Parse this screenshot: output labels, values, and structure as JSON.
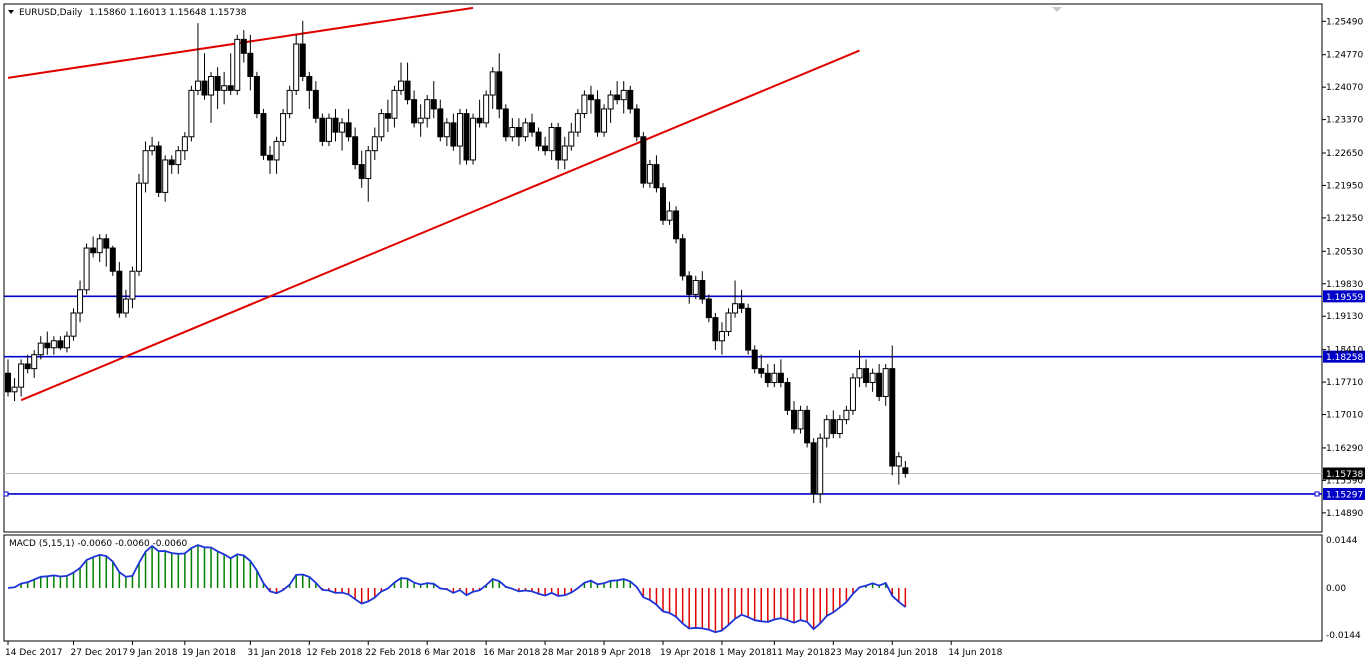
{
  "header": {
    "symbol_label": "EURUSD,Daily",
    "ohlc": "1.15860 1.16013 1.15648 1.15738"
  },
  "macd_label": "MACD (5,15,1) -0.0060 -0.0060 -0.0060",
  "colors": {
    "border": "#000000",
    "bull_fill": "#ffffff",
    "bear_fill": "#000000",
    "trend": "#e00000",
    "hline": "#0000c8",
    "macd_pos": "#008000",
    "macd_neg": "#e00000",
    "signal": "#1c34d8"
  },
  "chart_data": {
    "type": "candlestick",
    "symbol": "EURUSD",
    "timeframe": "Daily",
    "y_ticks": [
      "1.25490",
      "1.24770",
      "1.24070",
      "1.23370",
      "1.22650",
      "1.21950",
      "1.21250",
      "1.20530",
      "1.19830",
      "1.19130",
      "1.18410",
      "1.17710",
      "1.17010",
      "1.16290",
      "1.15590",
      "1.14890"
    ],
    "y_range": [
      1.1452,
      1.2582
    ],
    "x_labels": [
      "14 Dec 2017",
      "27 Dec 2017",
      "9 Jan 2018",
      "19 Jan 2018",
      "31 Jan 2018",
      "12 Feb 2018",
      "22 Feb 2018",
      "6 Mar 2018",
      "16 Mar 2018",
      "28 Mar 2018",
      "9 Apr 2018",
      "19 Apr 2018",
      "1 May 2018",
      "11 May 2018",
      "23 May 2018",
      "4 Jun 2018",
      "14 Jun 2018"
    ],
    "x_label_bars": [
      0,
      10,
      19,
      27,
      37,
      46,
      55,
      64,
      73,
      82,
      91,
      100,
      109,
      117,
      126,
      135,
      144
    ],
    "current_price": "1.15738",
    "horizontal_levels": [
      {
        "label": "1.19559",
        "value": 1.19559
      },
      {
        "label": "1.18258",
        "value": 1.18258
      },
      {
        "label": "1.15297",
        "value": 1.15297
      }
    ],
    "trendlines": [
      {
        "from": {
          "bar": 0,
          "price": 1.2427
        },
        "to": {
          "bar": 71,
          "price": 1.2578
        }
      },
      {
        "from": {
          "bar": 2,
          "price": 1.1732
        },
        "to": {
          "bar": 130,
          "price": 1.2486
        }
      }
    ],
    "candles": [
      [
        1.179,
        1.182,
        1.174,
        1.175
      ],
      [
        1.175,
        1.178,
        1.173,
        1.176
      ],
      [
        1.176,
        1.182,
        1.174,
        1.181
      ],
      [
        1.181,
        1.183,
        1.179,
        1.18
      ],
      [
        1.18,
        1.184,
        1.178,
        1.183
      ],
      [
        1.183,
        1.187,
        1.182,
        1.1855
      ],
      [
        1.1855,
        1.188,
        1.183,
        1.1845
      ],
      [
        1.1845,
        1.187,
        1.183,
        1.186
      ],
      [
        1.186,
        1.187,
        1.184,
        1.1845
      ],
      [
        1.1845,
        1.188,
        1.1835,
        1.187
      ],
      [
        1.187,
        1.193,
        1.186,
        1.192
      ],
      [
        1.192,
        1.199,
        1.19,
        1.197
      ],
      [
        1.197,
        1.207,
        1.196,
        1.206
      ],
      [
        1.206,
        1.2085,
        1.204,
        1.205
      ],
      [
        1.205,
        1.209,
        1.203,
        1.208
      ],
      [
        1.208,
        1.209,
        1.202,
        1.206
      ],
      [
        1.206,
        1.2065,
        1.2,
        1.201
      ],
      [
        1.201,
        1.203,
        1.191,
        1.192
      ],
      [
        1.192,
        1.197,
        1.191,
        1.195
      ],
      [
        1.195,
        1.202,
        1.193,
        1.201
      ],
      [
        1.201,
        1.222,
        1.2,
        1.22
      ],
      [
        1.22,
        1.229,
        1.218,
        1.227
      ],
      [
        1.227,
        1.23,
        1.226,
        1.228
      ],
      [
        1.228,
        1.229,
        1.217,
        1.218
      ],
      [
        1.218,
        1.226,
        1.216,
        1.225
      ],
      [
        1.225,
        1.226,
        1.222,
        1.224
      ],
      [
        1.224,
        1.228,
        1.222,
        1.227
      ],
      [
        1.227,
        1.231,
        1.225,
        1.23
      ],
      [
        1.23,
        1.241,
        1.229,
        1.24
      ],
      [
        1.24,
        1.2545,
        1.239,
        1.242
      ],
      [
        1.242,
        1.248,
        1.238,
        1.239
      ],
      [
        1.239,
        1.244,
        1.233,
        1.243
      ],
      [
        1.243,
        1.245,
        1.236,
        1.24
      ],
      [
        1.24,
        1.244,
        1.237,
        1.241
      ],
      [
        1.241,
        1.248,
        1.239,
        1.24
      ],
      [
        1.24,
        1.252,
        1.239,
        1.251
      ],
      [
        1.251,
        1.253,
        1.246,
        1.248
      ],
      [
        1.248,
        1.252,
        1.24,
        1.243
      ],
      [
        1.243,
        1.244,
        1.234,
        1.235
      ],
      [
        1.235,
        1.236,
        1.225,
        1.226
      ],
      [
        1.226,
        1.228,
        1.222,
        1.225
      ],
      [
        1.225,
        1.23,
        1.222,
        1.229
      ],
      [
        1.229,
        1.236,
        1.228,
        1.235
      ],
      [
        1.235,
        1.241,
        1.234,
        1.24
      ],
      [
        1.24,
        1.252,
        1.239,
        1.25
      ],
      [
        1.25,
        1.255,
        1.242,
        1.243
      ],
      [
        1.243,
        1.244,
        1.236,
        1.24
      ],
      [
        1.24,
        1.242,
        1.233,
        1.234
      ],
      [
        1.234,
        1.235,
        1.228,
        1.229
      ],
      [
        1.229,
        1.235,
        1.228,
        1.234
      ],
      [
        1.234,
        1.236,
        1.229,
        1.231
      ],
      [
        1.231,
        1.234,
        1.227,
        1.233
      ],
      [
        1.233,
        1.236,
        1.229,
        1.23
      ],
      [
        1.23,
        1.232,
        1.223,
        1.224
      ],
      [
        1.224,
        1.227,
        1.219,
        1.221
      ],
      [
        1.221,
        1.228,
        1.216,
        1.227
      ],
      [
        1.227,
        1.232,
        1.225,
        1.23
      ],
      [
        1.23,
        1.236,
        1.229,
        1.235
      ],
      [
        1.235,
        1.238,
        1.231,
        1.234
      ],
      [
        1.234,
        1.241,
        1.232,
        1.24
      ],
      [
        1.24,
        1.246,
        1.239,
        1.242
      ],
      [
        1.242,
        1.246,
        1.237,
        1.238
      ],
      [
        1.238,
        1.24,
        1.232,
        1.233
      ],
      [
        1.233,
        1.237,
        1.23,
        1.234
      ],
      [
        1.234,
        1.239,
        1.232,
        1.238
      ],
      [
        1.238,
        1.242,
        1.234,
        1.236
      ],
      [
        1.236,
        1.238,
        1.229,
        1.23
      ],
      [
        1.23,
        1.234,
        1.228,
        1.233
      ],
      [
        1.233,
        1.235,
        1.227,
        1.228
      ],
      [
        1.228,
        1.236,
        1.224,
        1.235
      ],
      [
        1.235,
        1.236,
        1.224,
        1.225
      ],
      [
        1.225,
        1.235,
        1.224,
        1.234
      ],
      [
        1.234,
        1.238,
        1.232,
        1.233
      ],
      [
        1.233,
        1.24,
        1.232,
        1.239
      ],
      [
        1.239,
        1.245,
        1.236,
        1.244
      ],
      [
        1.244,
        1.248,
        1.234,
        1.236
      ],
      [
        1.236,
        1.237,
        1.229,
        1.23
      ],
      [
        1.23,
        1.234,
        1.229,
        1.232
      ],
      [
        1.232,
        1.234,
        1.228,
        1.23
      ],
      [
        1.23,
        1.234,
        1.229,
        1.233
      ],
      [
        1.233,
        1.235,
        1.23,
        1.231
      ],
      [
        1.231,
        1.232,
        1.227,
        1.228
      ],
      [
        1.228,
        1.23,
        1.226,
        1.227
      ],
      [
        1.227,
        1.233,
        1.225,
        1.232
      ],
      [
        1.232,
        1.233,
        1.223,
        1.225
      ],
      [
        1.225,
        1.23,
        1.223,
        1.228
      ],
      [
        1.228,
        1.233,
        1.227,
        1.231
      ],
      [
        1.231,
        1.236,
        1.23,
        1.235
      ],
      [
        1.235,
        1.24,
        1.234,
        1.239
      ],
      [
        1.239,
        1.241,
        1.235,
        1.238
      ],
      [
        1.238,
        1.24,
        1.23,
        1.231
      ],
      [
        1.231,
        1.237,
        1.23,
        1.236
      ],
      [
        1.236,
        1.24,
        1.233,
        1.239
      ],
      [
        1.239,
        1.242,
        1.237,
        1.238
      ],
      [
        1.238,
        1.242,
        1.235,
        1.24
      ],
      [
        1.24,
        1.241,
        1.235,
        1.236
      ],
      [
        1.236,
        1.237,
        1.229,
        1.23
      ],
      [
        1.23,
        1.231,
        1.219,
        1.22
      ],
      [
        1.22,
        1.225,
        1.219,
        1.224
      ],
      [
        1.224,
        1.226,
        1.218,
        1.219
      ],
      [
        1.219,
        1.22,
        1.211,
        1.212
      ],
      [
        1.212,
        1.216,
        1.211,
        1.214
      ],
      [
        1.214,
        1.215,
        1.207,
        1.208
      ],
      [
        1.208,
        1.209,
        1.199,
        1.2
      ],
      [
        1.2,
        1.201,
        1.194,
        1.196
      ],
      [
        1.196,
        1.2,
        1.195,
        1.199
      ],
      [
        1.199,
        1.201,
        1.194,
        1.195
      ],
      [
        1.195,
        1.196,
        1.19,
        1.191
      ],
      [
        1.191,
        1.192,
        1.184,
        1.186
      ],
      [
        1.186,
        1.19,
        1.183,
        1.188
      ],
      [
        1.188,
        1.193,
        1.187,
        1.192
      ],
      [
        1.192,
        1.199,
        1.191,
        1.194
      ],
      [
        1.194,
        1.197,
        1.192,
        1.193
      ],
      [
        1.193,
        1.194,
        1.183,
        1.184
      ],
      [
        1.184,
        1.185,
        1.179,
        1.18
      ],
      [
        1.18,
        1.183,
        1.178,
        1.179
      ],
      [
        1.179,
        1.181,
        1.176,
        1.177
      ],
      [
        1.177,
        1.181,
        1.176,
        1.179
      ],
      [
        1.179,
        1.182,
        1.176,
        1.177
      ],
      [
        1.177,
        1.178,
        1.17,
        1.171
      ],
      [
        1.171,
        1.173,
        1.166,
        1.167
      ],
      [
        1.167,
        1.172,
        1.166,
        1.171
      ],
      [
        1.171,
        1.172,
        1.163,
        1.164
      ],
      [
        1.164,
        1.165,
        1.151,
        1.153
      ],
      [
        1.153,
        1.166,
        1.151,
        1.165
      ],
      [
        1.165,
        1.17,
        1.163,
        1.169
      ],
      [
        1.169,
        1.171,
        1.165,
        1.166
      ],
      [
        1.166,
        1.17,
        1.165,
        1.169
      ],
      [
        1.169,
        1.172,
        1.168,
        1.171
      ],
      [
        1.171,
        1.179,
        1.17,
        1.178
      ],
      [
        1.178,
        1.184,
        1.176,
        1.18
      ],
      [
        1.18,
        1.182,
        1.176,
        1.177
      ],
      [
        1.177,
        1.18,
        1.175,
        1.179
      ],
      [
        1.179,
        1.181,
        1.173,
        1.174
      ],
      [
        1.174,
        1.181,
        1.172,
        1.18
      ],
      [
        1.18,
        1.185,
        1.157,
        1.159
      ],
      [
        1.159,
        1.162,
        1.155,
        1.161
      ],
      [
        1.1586,
        1.1601,
        1.1565,
        1.1574
      ]
    ]
  }
}
